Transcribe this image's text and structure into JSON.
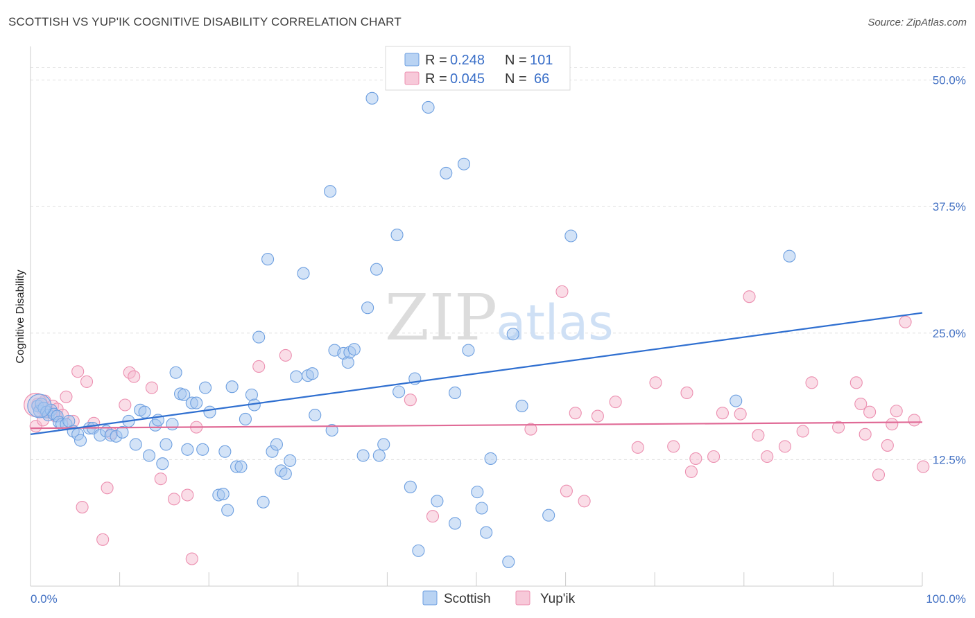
{
  "header": {
    "title": "SCOTTISH VS YUP'IK COGNITIVE DISABILITY CORRELATION CHART",
    "source": "Source: ZipAtlas.com"
  },
  "watermark": {
    "zip": "ZIP",
    "atlas": "atlas"
  },
  "legend": {
    "r_label": "R =",
    "n_label": "N =",
    "scottish": {
      "r": "0.248",
      "n": "101"
    },
    "yupik": {
      "r": "0.045",
      "n": "66"
    }
  },
  "colors": {
    "scottish_fill": "#a8c8f0",
    "scottish_stroke": "#6d9fe0",
    "scottish_line": "#2f6fd0",
    "yupik_fill": "#f5bcd0",
    "yupik_stroke": "#ec8fb0",
    "yupik_line": "#e06a96",
    "tick_text": "#4472c4"
  },
  "chart_data": {
    "type": "scatter",
    "title": "SCOTTISH VS YUP'IK COGNITIVE DISABILITY CORRELATION CHART",
    "xlabel": "",
    "ylabel": "Cognitive Disability",
    "xlim": [
      0,
      100
    ],
    "ylim": [
      0,
      50
    ],
    "x_tick_labels": [
      "0.0%",
      "100.0%"
    ],
    "y_ticks": [
      12.5,
      25.0,
      37.5,
      50.0
    ],
    "y_tick_labels": [
      "12.5%",
      "25.0%",
      "37.5%",
      "50.0%"
    ],
    "grid": "horizontal dashed",
    "legend_position": "top-center",
    "series": [
      {
        "name": "Scottish",
        "r": 0.248,
        "n": 101,
        "trend": {
          "x": [
            0,
            100
          ],
          "y": [
            15.0,
            27.0
          ]
        },
        "points": [
          [
            0.8,
            17.8
          ],
          [
            1.0,
            17.3
          ],
          [
            1.2,
            18.0
          ],
          [
            1.5,
            17.6
          ],
          [
            1.8,
            17.2
          ],
          [
            2.0,
            16.9
          ],
          [
            2.3,
            17.4
          ],
          [
            2.6,
            17.0
          ],
          [
            3.0,
            16.8
          ],
          [
            3.2,
            16.2
          ],
          [
            3.5,
            16.0
          ],
          [
            4.0,
            16.0
          ],
          [
            4.3,
            16.3
          ],
          [
            4.8,
            15.3
          ],
          [
            5.3,
            15.0
          ],
          [
            5.6,
            14.4
          ],
          [
            6.6,
            15.6
          ],
          [
            7.0,
            15.6
          ],
          [
            7.8,
            14.9
          ],
          [
            8.5,
            15.3
          ],
          [
            9.0,
            14.9
          ],
          [
            9.6,
            14.8
          ],
          [
            10.3,
            15.2
          ],
          [
            11.0,
            16.3
          ],
          [
            11.8,
            14.0
          ],
          [
            12.3,
            17.4
          ],
          [
            12.8,
            17.2
          ],
          [
            13.3,
            12.9
          ],
          [
            14.0,
            15.9
          ],
          [
            14.3,
            16.4
          ],
          [
            14.8,
            12.1
          ],
          [
            15.2,
            14.0
          ],
          [
            15.9,
            16.0
          ],
          [
            16.3,
            21.1
          ],
          [
            16.8,
            19.0
          ],
          [
            17.2,
            18.9
          ],
          [
            17.6,
            13.5
          ],
          [
            18.1,
            18.1
          ],
          [
            18.6,
            18.1
          ],
          [
            19.3,
            13.5
          ],
          [
            19.6,
            19.6
          ],
          [
            20.1,
            17.2
          ],
          [
            21.1,
            9.0
          ],
          [
            21.6,
            9.1
          ],
          [
            21.8,
            13.3
          ],
          [
            22.1,
            7.5
          ],
          [
            22.6,
            19.7
          ],
          [
            23.1,
            11.8
          ],
          [
            23.6,
            11.8
          ],
          [
            24.1,
            16.5
          ],
          [
            24.8,
            18.9
          ],
          [
            25.1,
            17.9
          ],
          [
            25.6,
            24.6
          ],
          [
            26.1,
            8.3
          ],
          [
            26.6,
            32.3
          ],
          [
            27.1,
            13.3
          ],
          [
            27.6,
            14.0
          ],
          [
            28.1,
            11.4
          ],
          [
            28.6,
            11.1
          ],
          [
            29.1,
            12.4
          ],
          [
            29.8,
            20.7
          ],
          [
            30.6,
            30.9
          ],
          [
            31.1,
            20.8
          ],
          [
            31.6,
            21.0
          ],
          [
            31.9,
            16.9
          ],
          [
            33.6,
            39.0
          ],
          [
            33.8,
            15.4
          ],
          [
            34.1,
            23.3
          ],
          [
            35.1,
            23.0
          ],
          [
            35.6,
            22.1
          ],
          [
            35.8,
            23.1
          ],
          [
            36.3,
            23.4
          ],
          [
            37.3,
            12.9
          ],
          [
            37.8,
            27.5
          ],
          [
            38.3,
            48.2
          ],
          [
            38.8,
            31.3
          ],
          [
            39.1,
            12.9
          ],
          [
            39.6,
            14.0
          ],
          [
            41.1,
            34.7
          ],
          [
            41.3,
            19.2
          ],
          [
            42.6,
            9.8
          ],
          [
            43.1,
            20.5
          ],
          [
            43.5,
            3.5
          ],
          [
            44.6,
            47.3
          ],
          [
            45.6,
            8.4
          ],
          [
            46.6,
            40.8
          ],
          [
            47.6,
            19.1
          ],
          [
            47.6,
            6.2
          ],
          [
            48.6,
            41.7
          ],
          [
            49.1,
            23.3
          ],
          [
            50.1,
            9.3
          ],
          [
            50.6,
            7.7
          ],
          [
            51.1,
            5.3
          ],
          [
            51.6,
            12.6
          ],
          [
            53.6,
            2.4
          ],
          [
            54.1,
            24.9
          ],
          [
            55.1,
            17.8
          ],
          [
            58.1,
            7.0
          ],
          [
            60.6,
            34.6
          ],
          [
            79.1,
            18.3
          ],
          [
            85.1,
            32.6
          ]
        ]
      },
      {
        "name": "Yup'ik",
        "r": 0.045,
        "n": 66,
        "trend": {
          "x": [
            0,
            100
          ],
          "y": [
            15.6,
            16.2
          ]
        },
        "points": [
          [
            0.8,
            18.0
          ],
          [
            1.2,
            17.6
          ],
          [
            1.6,
            18.3
          ],
          [
            2.0,
            17.2
          ],
          [
            2.5,
            17.8
          ],
          [
            3.0,
            17.5
          ],
          [
            0.6,
            15.8
          ],
          [
            1.4,
            16.4
          ],
          [
            2.8,
            16.8
          ],
          [
            3.6,
            16.9
          ],
          [
            4.0,
            18.7
          ],
          [
            4.8,
            16.3
          ],
          [
            5.3,
            21.2
          ],
          [
            5.8,
            7.8
          ],
          [
            6.3,
            20.2
          ],
          [
            7.1,
            16.1
          ],
          [
            8.1,
            4.6
          ],
          [
            8.6,
            9.7
          ],
          [
            9.1,
            15.1
          ],
          [
            10.6,
            17.9
          ],
          [
            11.1,
            21.1
          ],
          [
            11.6,
            20.7
          ],
          [
            13.6,
            19.6
          ],
          [
            14.6,
            10.6
          ],
          [
            16.1,
            8.6
          ],
          [
            17.6,
            9.0
          ],
          [
            18.1,
            2.7
          ],
          [
            18.6,
            15.7
          ],
          [
            25.6,
            21.7
          ],
          [
            28.6,
            22.8
          ],
          [
            42.6,
            18.4
          ],
          [
            45.1,
            6.9
          ],
          [
            56.1,
            15.5
          ],
          [
            59.6,
            29.1
          ],
          [
            60.1,
            9.4
          ],
          [
            61.1,
            17.1
          ],
          [
            62.1,
            8.4
          ],
          [
            63.6,
            16.8
          ],
          [
            65.6,
            18.2
          ],
          [
            68.1,
            13.7
          ],
          [
            70.1,
            20.1
          ],
          [
            72.1,
            13.8
          ],
          [
            73.6,
            19.1
          ],
          [
            74.1,
            11.3
          ],
          [
            74.6,
            12.6
          ],
          [
            76.6,
            12.8
          ],
          [
            77.6,
            17.1
          ],
          [
            79.6,
            17.0
          ],
          [
            80.6,
            28.6
          ],
          [
            81.6,
            14.9
          ],
          [
            82.6,
            12.8
          ],
          [
            84.6,
            13.8
          ],
          [
            86.6,
            15.3
          ],
          [
            87.6,
            20.1
          ],
          [
            90.6,
            15.7
          ],
          [
            92.6,
            20.1
          ],
          [
            93.1,
            18.0
          ],
          [
            93.6,
            15.0
          ],
          [
            94.1,
            17.2
          ],
          [
            95.1,
            11.0
          ],
          [
            96.1,
            13.9
          ],
          [
            96.6,
            16.0
          ],
          [
            97.1,
            17.3
          ],
          [
            98.1,
            26.1
          ],
          [
            99.1,
            16.4
          ],
          [
            100.1,
            11.8
          ]
        ]
      }
    ],
    "bubbles": [
      {
        "series": "Scottish",
        "x": 1.0,
        "y": 17.8,
        "size": "large"
      },
      {
        "series": "Yup'ik",
        "x": 0.6,
        "y": 17.9,
        "size": "large"
      }
    ]
  },
  "bottom_legend": {
    "items": [
      {
        "label": "Scottish"
      },
      {
        "label": "Yup'ik"
      }
    ]
  }
}
